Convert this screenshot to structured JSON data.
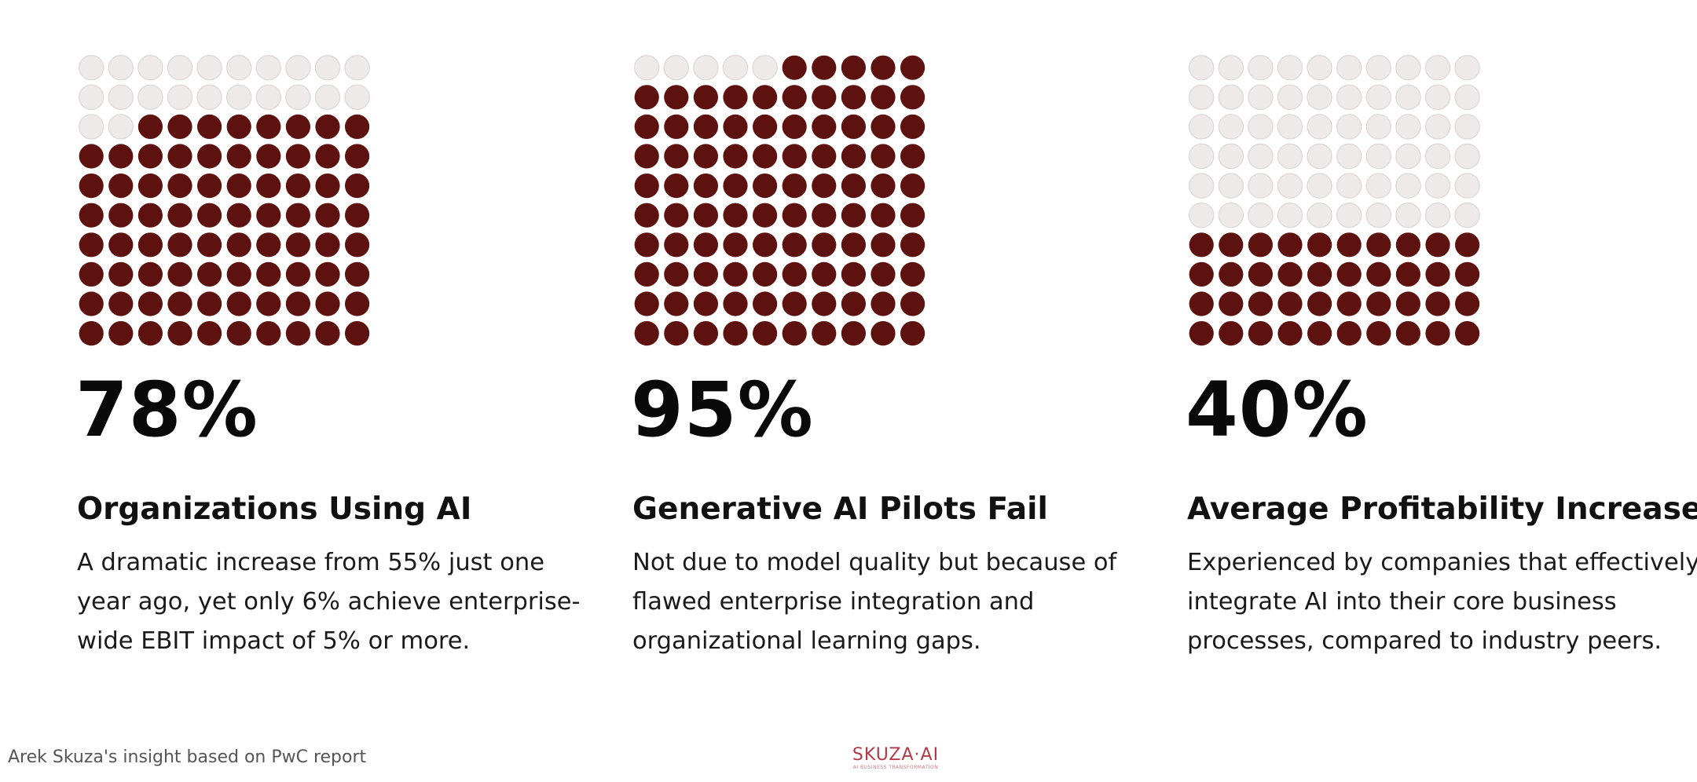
{
  "colors": {
    "filled": "#5e120f",
    "empty": "#efeaea",
    "empty_stroke": "#dcd6d6",
    "brand": "#b23a48"
  },
  "chart_data": [
    {
      "type": "waffle",
      "grid": [
        10,
        10
      ],
      "value": 78,
      "percent_label": "78%",
      "title": "Organizations Using AI",
      "description": "A dramatic increase from 55% just one year ago, yet only 6% achieve enterprise-wide EBIT impact of 5% or more."
    },
    {
      "type": "waffle",
      "grid": [
        10,
        10
      ],
      "value": 95,
      "percent_label": "95%",
      "title": "Generative AI Pilots Fail",
      "description": "Not due to model quality but because of flawed enterprise integration and organizational learning gaps."
    },
    {
      "type": "waffle",
      "grid": [
        10,
        10
      ],
      "value": 40,
      "percent_label": "40%",
      "title": "Average Profitability Increase",
      "description": "Experienced by companies that effectively integrate AI into their core business processes, compared to industry peers."
    }
  ],
  "footer": {
    "source": "Arek Skuza's insight based on PwC report",
    "brand_name": "SKUZA·AI",
    "brand_tagline": "AI BUSINESS TRANSFORMATION"
  }
}
